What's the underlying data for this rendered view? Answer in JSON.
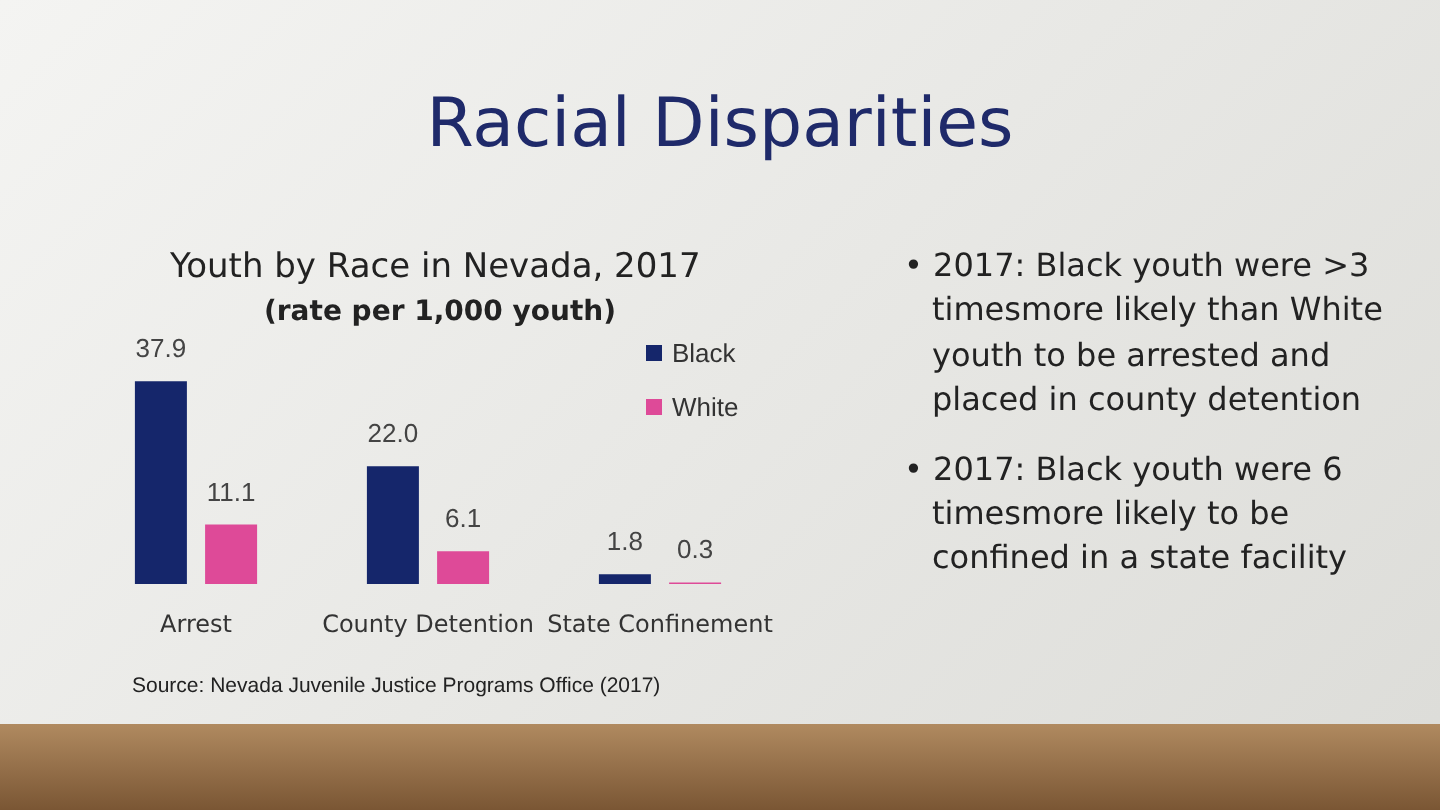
{
  "chart_data": {
    "type": "bar",
    "title": "Racial Disparities",
    "subtitle": "Youth by Race in Nevada, 2017",
    "categories": [
      "Arrest",
      "County Detention",
      "State Confinement"
    ],
    "series": [
      {
        "name": "Black",
        "color": "#15266b",
        "values": [
          37.9,
          22.0,
          1.8
        ],
        "value_labels": [
          "37.9",
          "22.0",
          "1.8"
        ]
      },
      {
        "name": "White",
        "color": "#de4a98",
        "values": [
          11.1,
          6.1,
          0.3
        ],
        "value_labels": [
          "11.1",
          "6.1",
          "0.3"
        ]
      }
    ],
    "legend": "top right",
    "annotations": [
      "(rate per 1,000 youth)",
      "Source: Nevada Juvenile Justice Programs Office (2017)",
      "• 2017: Black youth were >3 timesmore likely than White youth to be arrested and placed in county detention",
      "• 2017: Black youth were 6 timesmore likely to be confined in a state facility"
    ]
  }
}
